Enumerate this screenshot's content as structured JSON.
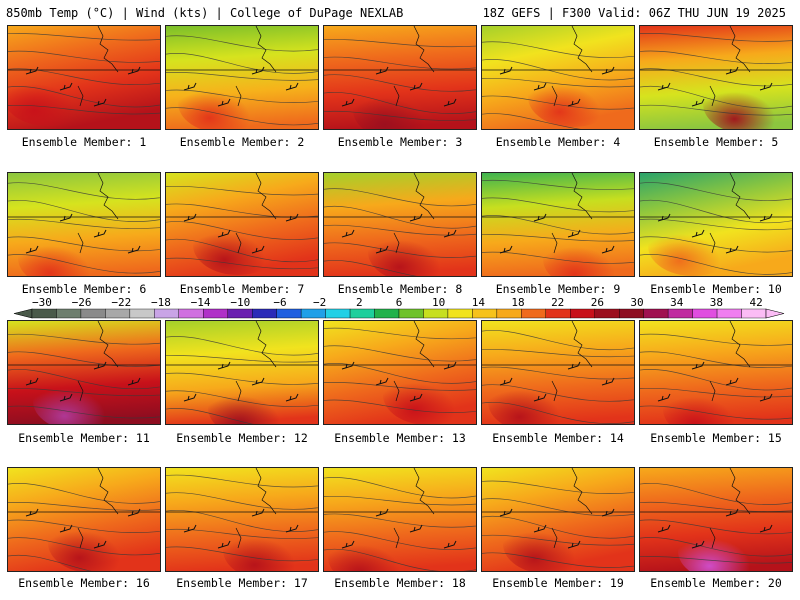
{
  "header": {
    "left": "850mb Temp (°C) | Wind (kts) | College of DuPage NEXLAB",
    "right": "18Z GEFS | F300 Valid: 06Z THU JUN 19 2025"
  },
  "members": [
    {
      "label": "Ensemble Member: 1",
      "palette": [
        "#f7a91b",
        "#ef6a1c",
        "#e2331a",
        "#b5121a"
      ],
      "hot": "#c8111a"
    },
    {
      "label": "Ensemble Member: 2",
      "palette": [
        "#7bbf2a",
        "#d6e31e",
        "#f6b21b",
        "#ef6a1c"
      ],
      "hot": "#e2331a"
    },
    {
      "label": "Ensemble Member: 3",
      "palette": [
        "#f7a91b",
        "#ef6a1c",
        "#e2331a",
        "#b5121a"
      ],
      "hot": "#9b0f1e"
    },
    {
      "label": "Ensemble Member: 4",
      "palette": [
        "#a5d02a",
        "#f1e31e",
        "#f7a91b",
        "#ef6a1c"
      ],
      "hot": "#e2331a"
    },
    {
      "label": "Ensemble Member: 5",
      "palette": [
        "#e2331a",
        "#f7a91b",
        "#d6e31e",
        "#8cc63f"
      ],
      "hot": "#a0101c"
    },
    {
      "label": "Ensemble Member: 6",
      "palette": [
        "#8cc63f",
        "#d6e31e",
        "#f7a91b",
        "#ef6a1c"
      ],
      "hot": "#e2331a"
    },
    {
      "label": "Ensemble Member: 7",
      "palette": [
        "#d6e31e",
        "#f7a91b",
        "#ef6a1c",
        "#e2331a"
      ],
      "hot": "#b5121a"
    },
    {
      "label": "Ensemble Member: 8",
      "palette": [
        "#a5d02a",
        "#f7a91b",
        "#ef6a1c",
        "#e2331a"
      ],
      "hot": "#b5121a"
    },
    {
      "label": "Ensemble Member: 9",
      "palette": [
        "#3fb34f",
        "#c7df1f",
        "#f7a91b",
        "#ef6a1c"
      ],
      "hot": "#e2331a"
    },
    {
      "label": "Ensemble Member: 10",
      "palette": [
        "#2aa36b",
        "#8cc63f",
        "#f1e31e",
        "#f7a91b"
      ],
      "hot": "#ef6a1c"
    },
    {
      "label": "Ensemble Member: 11",
      "palette": [
        "#d6e31e",
        "#ef6a1c",
        "#c8111a",
        "#8e0d20"
      ],
      "hot": "#b03a9b"
    },
    {
      "label": "Ensemble Member: 12",
      "palette": [
        "#a5d02a",
        "#f1e31e",
        "#f7a91b",
        "#e2331a"
      ],
      "hot": "#9b0f1e"
    },
    {
      "label": "Ensemble Member: 13",
      "palette": [
        "#f1e31e",
        "#f7a91b",
        "#ef6a1c",
        "#e2331a"
      ],
      "hot": "#c8111a"
    },
    {
      "label": "Ensemble Member: 14",
      "palette": [
        "#f1e31e",
        "#f7a91b",
        "#ef6a1c",
        "#e2331a"
      ],
      "hot": "#b5121a"
    },
    {
      "label": "Ensemble Member: 15",
      "palette": [
        "#f1e31e",
        "#f7a91b",
        "#ef6a1c",
        "#e2331a"
      ],
      "hot": "#c8111a"
    },
    {
      "label": "Ensemble Member: 16",
      "palette": [
        "#f1e31e",
        "#f7a91b",
        "#ef6a1c",
        "#e2331a"
      ],
      "hot": "#b5121a"
    },
    {
      "label": "Ensemble Member: 17",
      "palette": [
        "#f1e31e",
        "#f7a91b",
        "#ef6a1c",
        "#e2331a"
      ],
      "hot": "#b5121a"
    },
    {
      "label": "Ensemble Member: 18",
      "palette": [
        "#f1e31e",
        "#f7a91b",
        "#ef6a1c",
        "#e2331a"
      ],
      "hot": "#b5121a"
    },
    {
      "label": "Ensemble Member: 19",
      "palette": [
        "#f1e31e",
        "#f7a91b",
        "#ef6a1c",
        "#e2331a"
      ],
      "hot": "#b5121a"
    },
    {
      "label": "Ensemble Member: 20",
      "palette": [
        "#f7a91b",
        "#ef6a1c",
        "#e2331a",
        "#b5121a"
      ],
      "hot": "#d04fd0"
    }
  ],
  "colorbar": {
    "labels": [
      "−30",
      "−26",
      "−22",
      "−18",
      "−14",
      "−10",
      "−6",
      "−2",
      "2",
      "6",
      "10",
      "14",
      "18",
      "22",
      "26",
      "30",
      "34",
      "38",
      "42"
    ],
    "colors": [
      "#4a5a4a",
      "#6e7f6e",
      "#8a8a8a",
      "#a8a8a8",
      "#c8c8c8",
      "#c9a4e6",
      "#d070e0",
      "#b030c8",
      "#6a1fb0",
      "#2a2ab8",
      "#1f5fe0",
      "#1fa0e8",
      "#22d0e6",
      "#1ecf9c",
      "#22b24b",
      "#6fc22a",
      "#c7df1f",
      "#f1e31e",
      "#f6c21b",
      "#f7a91b",
      "#ef6a1c",
      "#e2331a",
      "#c8111a",
      "#9b0f1e",
      "#8e0d20",
      "#a01050",
      "#c02aa0",
      "#e04ee0",
      "#f07ef0",
      "#fbbcf5"
    ]
  }
}
